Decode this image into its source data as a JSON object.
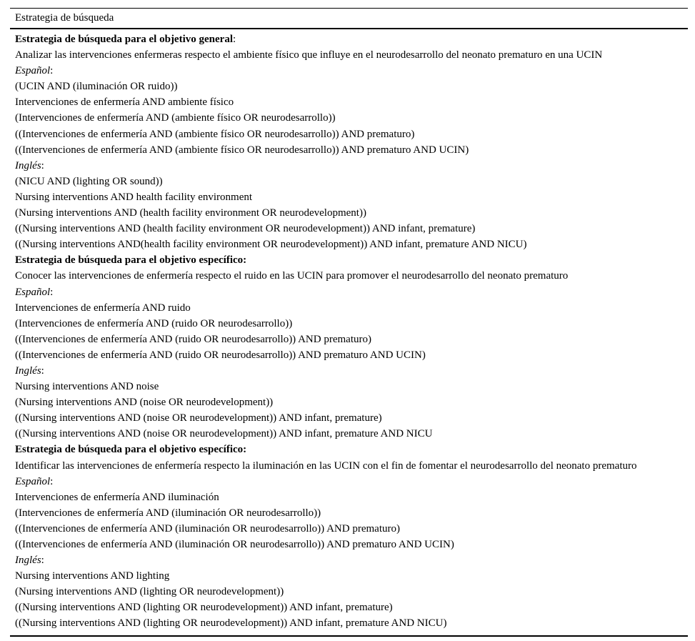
{
  "colors": {
    "background": "#ffffff",
    "text": "#000000",
    "border": "#000000"
  },
  "table": {
    "header": "Estrategia de búsqueda",
    "rows": [
      {
        "parts": [
          {
            "text": "Estrategia de búsqueda para el objetivo general",
            "style": "bold"
          },
          {
            "text": ":",
            "style": ""
          }
        ]
      },
      {
        "parts": [
          {
            "text": "Analizar las intervenciones enfermeras respecto el ambiente físico que influye en el neurodesarrollo del neonato prematuro en una UCIN",
            "style": ""
          }
        ]
      },
      {
        "parts": [
          {
            "text": "Español",
            "style": "italic"
          },
          {
            "text": ":",
            "style": ""
          }
        ]
      },
      {
        "parts": [
          {
            "text": "(UCIN AND (iluminación OR ruido))",
            "style": ""
          }
        ]
      },
      {
        "parts": [
          {
            "text": "Intervenciones de enfermería AND ambiente físico",
            "style": ""
          }
        ]
      },
      {
        "parts": [
          {
            "text": "(Intervenciones de enfermería AND (ambiente físico OR neurodesarrollo))",
            "style": ""
          }
        ]
      },
      {
        "parts": [
          {
            "text": "((Intervenciones de enfermería AND (ambiente físico OR neurodesarrollo)) AND prematuro)",
            "style": ""
          }
        ]
      },
      {
        "parts": [
          {
            "text": "((Intervenciones de enfermería AND (ambiente físico OR neurodesarrollo)) AND prematuro AND UCIN)",
            "style": ""
          }
        ]
      },
      {
        "parts": [
          {
            "text": "Inglés",
            "style": "italic"
          },
          {
            "text": ":",
            "style": ""
          }
        ]
      },
      {
        "parts": [
          {
            "text": "(NICU AND (lighting OR sound))",
            "style": ""
          }
        ]
      },
      {
        "parts": [
          {
            "text": "Nursing interventions AND health facility environment",
            "style": ""
          }
        ]
      },
      {
        "parts": [
          {
            "text": "(Nursing interventions AND (health facility environment OR neurodevelopment))",
            "style": ""
          }
        ]
      },
      {
        "parts": [
          {
            "text": "((Nursing interventions AND (health facility environment OR neurodevelopment)) AND infant, premature)",
            "style": ""
          }
        ]
      },
      {
        "parts": [
          {
            "text": "((Nursing interventions AND(health facility environment OR neurodevelopment)) AND infant, premature AND NICU)",
            "style": ""
          }
        ]
      },
      {
        "parts": [
          {
            "text": "Estrategia de búsqueda para el objetivo específico:",
            "style": "bold"
          }
        ]
      },
      {
        "parts": [
          {
            "text": "Conocer las intervenciones de enfermería respecto el ruido en las UCIN para promover el neurodesarrollo del neonato prematuro",
            "style": ""
          }
        ]
      },
      {
        "parts": [
          {
            "text": "Español",
            "style": "italic"
          },
          {
            "text": ":",
            "style": ""
          }
        ]
      },
      {
        "parts": [
          {
            "text": "Intervenciones de enfermería AND ruido",
            "style": ""
          }
        ]
      },
      {
        "parts": [
          {
            "text": "(Intervenciones de enfermería AND (ruido OR neurodesarrollo))",
            "style": ""
          }
        ]
      },
      {
        "parts": [
          {
            "text": "((Intervenciones de enfermería AND (ruido OR neurodesarrollo)) AND prematuro)",
            "style": ""
          }
        ]
      },
      {
        "parts": [
          {
            "text": "((Intervenciones de enfermería AND (ruido OR neurodesarrollo)) AND prematuro AND UCIN)",
            "style": ""
          }
        ]
      },
      {
        "parts": [
          {
            "text": "Inglés",
            "style": "italic"
          },
          {
            "text": ":",
            "style": ""
          }
        ]
      },
      {
        "parts": [
          {
            "text": "Nursing interventions AND noise",
            "style": ""
          }
        ]
      },
      {
        "parts": [
          {
            "text": "(Nursing interventions AND (noise OR neurodevelopment))",
            "style": ""
          }
        ]
      },
      {
        "parts": [
          {
            "text": "((Nursing interventions AND (noise OR neurodevelopment)) AND infant, premature)",
            "style": ""
          }
        ]
      },
      {
        "parts": [
          {
            "text": "((Nursing interventions AND (noise OR neurodevelopment)) AND infant, premature AND NICU",
            "style": ""
          }
        ]
      },
      {
        "parts": [
          {
            "text": "Estrategia de búsqueda para el objetivo específico:",
            "style": "bold"
          }
        ]
      },
      {
        "parts": [
          {
            "text": "Identificar las intervenciones de enfermería respecto la iluminación en las UCIN con el fin de fomentar el neurodesarrollo del neonato prematuro",
            "style": ""
          }
        ]
      },
      {
        "parts": [
          {
            "text": "Español",
            "style": "italic"
          },
          {
            "text": ":",
            "style": ""
          }
        ]
      },
      {
        "parts": [
          {
            "text": "Intervenciones de enfermería AND iluminación",
            "style": ""
          }
        ]
      },
      {
        "parts": [
          {
            "text": "(Intervenciones de enfermería AND (iluminación OR neurodesarrollo))",
            "style": ""
          }
        ]
      },
      {
        "parts": [
          {
            "text": "((Intervenciones de enfermería AND (iluminación OR neurodesarrollo)) AND prematuro)",
            "style": ""
          }
        ]
      },
      {
        "parts": [
          {
            "text": "((Intervenciones de enfermería AND (iluminación OR neurodesarrollo)) AND prematuro AND UCIN)",
            "style": ""
          }
        ]
      },
      {
        "parts": [
          {
            "text": "Inglés",
            "style": "italic"
          },
          {
            "text": ":",
            "style": ""
          }
        ]
      },
      {
        "parts": [
          {
            "text": "Nursing interventions AND lighting",
            "style": ""
          }
        ]
      },
      {
        "parts": [
          {
            "text": "(Nursing interventions AND (lighting OR neurodevelopment))",
            "style": ""
          }
        ]
      },
      {
        "parts": [
          {
            "text": "((Nursing interventions AND (lighting OR neurodevelopment)) AND infant, premature)",
            "style": ""
          }
        ]
      },
      {
        "parts": [
          {
            "text": "((Nursing interventions AND (lighting OR neurodevelopment)) AND infant, premature AND NICU)",
            "style": ""
          }
        ]
      }
    ]
  }
}
